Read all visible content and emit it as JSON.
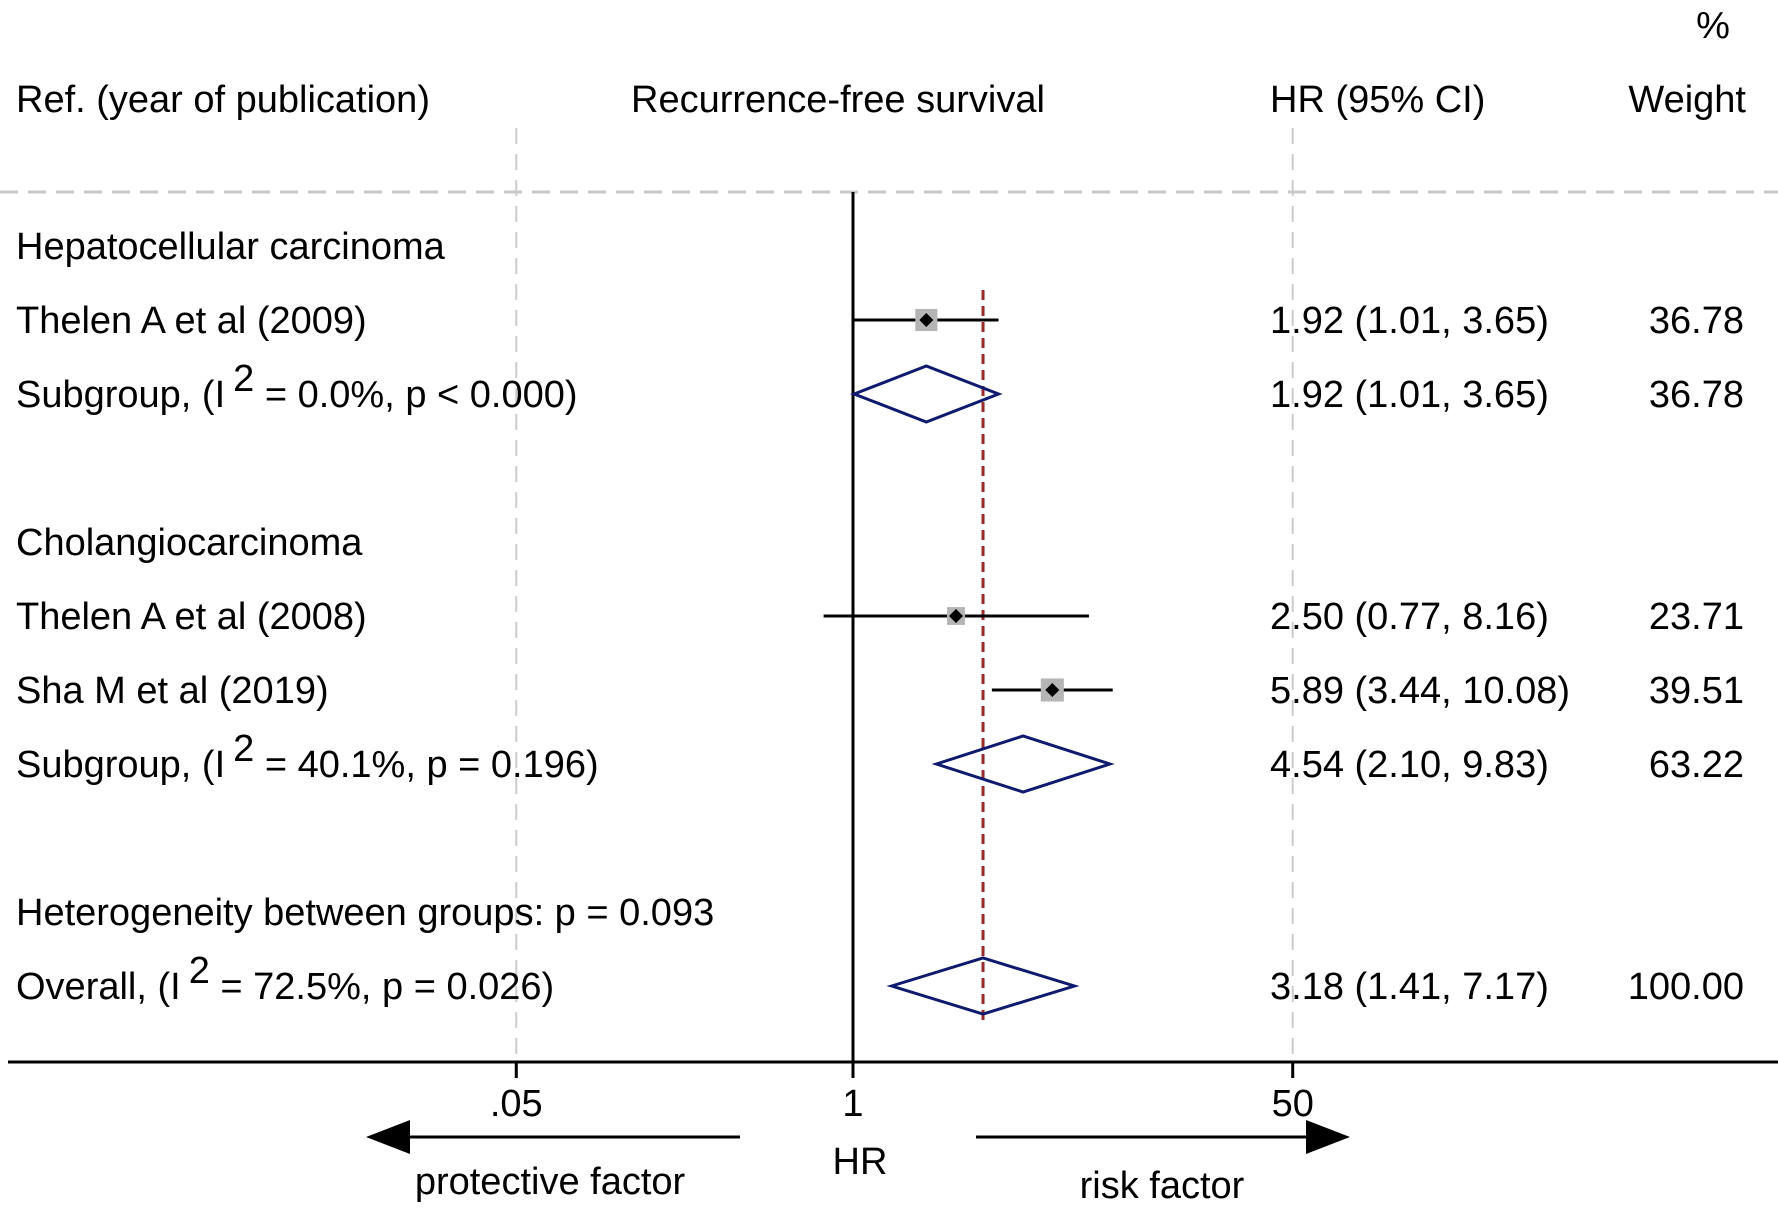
{
  "chart_data": {
    "type": "forest",
    "header": {
      "ref_label": "Ref. (year of publication)",
      "plot_title": "Recurrence-free survival",
      "hr_label": "HR (95% CI)",
      "weight_label_pct": "%",
      "weight_label": "Weight"
    },
    "rows": [
      {
        "kind": "group",
        "label": "Hepatocellular carcinoma"
      },
      {
        "kind": "study",
        "label": "Thelen A et al (2009)",
        "hr": 1.92,
        "lo": 1.01,
        "hi": 3.65,
        "weight": 36.78,
        "hr_text": "1.92 (1.01, 3.65)",
        "weight_text": "36.78"
      },
      {
        "kind": "subgroup",
        "prefix": "Subgroup,  (I",
        "sup": "2",
        "suffix": " = 0.0%, p < 0.000)",
        "hr": 1.92,
        "lo": 1.01,
        "hi": 3.65,
        "hr_text": "1.92 (1.01, 3.65)",
        "weight_text": "36.78"
      },
      {
        "kind": "blank"
      },
      {
        "kind": "group",
        "label": "Cholangiocarcinoma"
      },
      {
        "kind": "study",
        "label": "Thelen A et al (2008)",
        "hr": 2.5,
        "lo": 0.77,
        "hi": 8.16,
        "weight": 23.71,
        "hr_text": "2.50 (0.77, 8.16)",
        "weight_text": "23.71"
      },
      {
        "kind": "study",
        "label": "Sha M et al (2019)",
        "hr": 5.89,
        "lo": 3.44,
        "hi": 10.08,
        "weight": 39.51,
        "hr_text": "5.89 (3.44, 10.08)",
        "weight_text": "39.51"
      },
      {
        "kind": "subgroup",
        "prefix": "Subgroup,  (I",
        "sup": "2",
        "suffix": " = 40.1%, p = 0.196)",
        "hr": 4.54,
        "lo": 2.1,
        "hi": 9.83,
        "hr_text": "4.54 (2.10, 9.83)",
        "weight_text": "63.22"
      },
      {
        "kind": "blank"
      },
      {
        "kind": "text",
        "label": "Heterogeneity between groups: p = 0.093"
      },
      {
        "kind": "overall",
        "prefix": "Overall,  (I",
        "sup": "2",
        "suffix": "  = 72.5%, p = 0.026)",
        "hr": 3.18,
        "lo": 1.41,
        "hi": 7.17,
        "hr_text": "3.18 (1.41, 7.17)",
        "weight_text": "100.00"
      }
    ],
    "x_axis": {
      "scale": "log",
      "ticks": [
        {
          "value": 0.05,
          "label": ".05"
        },
        {
          "value": 1,
          "label": "1"
        },
        {
          "value": 50,
          "label": "50"
        }
      ],
      "label": "HR",
      "null_value": 1,
      "overall_line_value": 3.18
    },
    "arrows": {
      "left": "protective factor",
      "right": "risk factor"
    }
  },
  "colors": {
    "diamond": "#0d1a6e",
    "overall_line": "#9b2a2a",
    "square": "#b5b5b5",
    "dashed_grid": "#cccccc"
  }
}
